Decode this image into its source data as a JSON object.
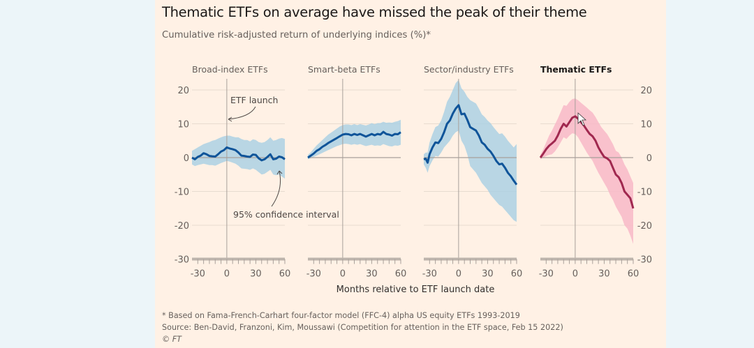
{
  "title": "Thematic ETFs on average have missed the peak of their theme",
  "subtitle": "Cumulative risk-adjusted return of underlying indices (%)*",
  "colors": {
    "page_bg": "#ecf5f9",
    "panel_bg": "#fff1e5",
    "blue_line": "#0f5499",
    "blue_band": "#a8cfe3",
    "pink_line": "#a0284f",
    "pink_band": "#f8b8c8"
  },
  "chart_data": {
    "type": "line",
    "title": "Thematic ETFs on average have missed the peak of their theme",
    "subtitle": "Cumulative risk-adjusted return of underlying indices (%)*",
    "xlabel": "Months relative to ETF launch date",
    "ylabel": "",
    "xlim": [
      -36,
      60
    ],
    "ylim": [
      -30,
      20
    ],
    "xticks": [
      -30,
      0,
      30,
      60
    ],
    "yticks": [
      20,
      10,
      0,
      -10,
      -20,
      -30
    ],
    "ytick_labels": [
      "20",
      "10",
      "0",
      "-10",
      "-20",
      "-30"
    ],
    "xtick_labels": [
      "-30",
      "0",
      "30",
      "60"
    ],
    "grid": true,
    "annotations": [
      "ETF launch",
      "95% confidence interval"
    ],
    "panels": [
      {
        "name": "Broad-index ETFs",
        "highlight": false,
        "color": "blue",
        "x": [
          -36,
          -33,
          -30,
          -27,
          -24,
          -21,
          -18,
          -15,
          -12,
          -9,
          -6,
          -3,
          0,
          3,
          6,
          9,
          12,
          15,
          18,
          21,
          24,
          27,
          30,
          33,
          36,
          39,
          42,
          45,
          48,
          51,
          54,
          57,
          60
        ],
        "values": [
          0,
          -0.5,
          0.2,
          0.6,
          1.3,
          1.0,
          0.5,
          0.4,
          0.3,
          1.0,
          1.8,
          2.2,
          3.0,
          2.7,
          2.5,
          2.2,
          1.5,
          0.6,
          0.5,
          0.3,
          0.2,
          0.9,
          0.8,
          -0.2,
          -0.8,
          -0.5,
          0.2,
          1.0,
          -0.5,
          -0.3,
          0.3,
          0.1,
          -0.5
        ],
        "upper": [
          2,
          2.5,
          3,
          3.5,
          4,
          4.3,
          4.6,
          5.0,
          5.2,
          5.6,
          6.0,
          6.3,
          6.5,
          6.5,
          6.2,
          6.0,
          6.0,
          5.5,
          5.2,
          5.2,
          4.8,
          5.4,
          5.2,
          4.6,
          4.4,
          4.6,
          5.2,
          6.0,
          5.0,
          5.2,
          5.6,
          5.8,
          5.5
        ],
        "lower": [
          -2,
          -2.5,
          -2.2,
          -2,
          -1.8,
          -2.0,
          -2.2,
          -2.2,
          -2.4,
          -2,
          -1.6,
          -1.3,
          -1.0,
          -1.2,
          -1.5,
          -1.8,
          -2.4,
          -3.2,
          -3.3,
          -3.4,
          -3.6,
          -3.2,
          -3.6,
          -4.3,
          -5.0,
          -4.8,
          -4.2,
          -3.6,
          -5.0,
          -5.2,
          -5.0,
          -5.6,
          -6.2
        ]
      },
      {
        "name": "Smart-beta ETFs",
        "highlight": false,
        "color": "blue",
        "x": [
          -36,
          -33,
          -30,
          -27,
          -24,
          -21,
          -18,
          -15,
          -12,
          -9,
          -6,
          -3,
          0,
          3,
          6,
          9,
          12,
          15,
          18,
          21,
          24,
          27,
          30,
          33,
          36,
          39,
          42,
          45,
          48,
          51,
          54,
          57,
          60
        ],
        "values": [
          0,
          0.6,
          1.2,
          2.0,
          2.5,
          3.2,
          3.7,
          4.3,
          4.8,
          5.3,
          5.8,
          6.3,
          6.8,
          7.0,
          6.9,
          6.6,
          7.0,
          6.7,
          7.0,
          6.6,
          6.2,
          6.6,
          7.0,
          6.6,
          7.0,
          6.8,
          7.6,
          7.0,
          6.8,
          6.5,
          7.0,
          6.9,
          7.5
        ],
        "upper": [
          0.8,
          1.6,
          2.6,
          3.6,
          4.4,
          5.2,
          6.0,
          6.8,
          7.4,
          8.0,
          8.6,
          9.2,
          9.6,
          9.8,
          9.8,
          9.6,
          9.9,
          9.6,
          9.9,
          9.7,
          9.5,
          9.8,
          10.2,
          9.9,
          10.2,
          10.2,
          10.6,
          10.3,
          10.4,
          10.3,
          10.6,
          10.8,
          11.2
        ],
        "lower": [
          -0.5,
          -0.2,
          0.2,
          0.6,
          1.0,
          1.4,
          1.8,
          2.2,
          2.6,
          3.0,
          3.4,
          3.7,
          4.0,
          4.1,
          4.0,
          3.8,
          4.0,
          3.8,
          4.0,
          3.7,
          3.4,
          3.6,
          3.8,
          3.5,
          3.6,
          3.5,
          4.0,
          3.7,
          3.4,
          3.3,
          3.6,
          3.5,
          3.8
        ]
      },
      {
        "name": "Sector/industry ETFs",
        "highlight": false,
        "color": "blue",
        "x": [
          -36,
          -34,
          -32,
          -30,
          -27,
          -24,
          -21,
          -18,
          -15,
          -12,
          -9,
          -6,
          -3,
          0,
          3,
          6,
          9,
          12,
          15,
          18,
          21,
          24,
          27,
          30,
          33,
          36,
          39,
          42,
          45,
          48,
          51,
          54,
          57,
          60
        ],
        "values": [
          -0.5,
          -0.3,
          -1.5,
          1.0,
          3.0,
          4.5,
          4.3,
          5.5,
          7.5,
          10.0,
          11.0,
          13.0,
          14.5,
          15.5,
          12.8,
          13.0,
          11.2,
          9.0,
          8.5,
          8.0,
          6.5,
          4.5,
          3.8,
          2.6,
          1.8,
          0.5,
          -1.0,
          -2.0,
          -1.8,
          -3.0,
          -4.5,
          -5.5,
          -6.8,
          -8.0
        ],
        "upper": [
          1.0,
          1.5,
          1.5,
          4.5,
          7.0,
          9.0,
          9.5,
          11.0,
          13.5,
          16.5,
          18.0,
          20.0,
          22.0,
          23.0,
          20.5,
          19.5,
          18.0,
          17.0,
          16.5,
          16.0,
          14.5,
          12.8,
          12.0,
          11.0,
          10.2,
          9.0,
          8.0,
          7.0,
          7.2,
          6.2,
          5.0,
          4.0,
          3.0,
          4.0
        ],
        "lower": [
          -2.0,
          -3.0,
          -4.5,
          -2.5,
          -0.8,
          0.5,
          0.3,
          1.5,
          3.0,
          4.0,
          5.0,
          6.5,
          7.5,
          8.0,
          5.0,
          3.5,
          1.0,
          -2.5,
          -3.5,
          -4.5,
          -6.0,
          -7.5,
          -8.5,
          -9.5,
          -11.0,
          -12.0,
          -13.0,
          -14.0,
          -14.5,
          -15.5,
          -16.5,
          -17.5,
          -18.5,
          -19.0
        ]
      },
      {
        "name": "Thematic ETFs",
        "highlight": true,
        "color": "pink",
        "x": [
          -36,
          -33,
          -30,
          -27,
          -24,
          -21,
          -18,
          -15,
          -12,
          -9,
          -6,
          -3,
          0,
          3,
          6,
          9,
          12,
          15,
          18,
          21,
          24,
          27,
          30,
          33,
          36,
          39,
          42,
          45,
          48,
          51,
          54,
          57,
          60
        ],
        "values": [
          0,
          1.2,
          2.5,
          3.5,
          4.2,
          5.0,
          6.5,
          8.5,
          10.0,
          9.2,
          10.5,
          11.8,
          12.2,
          11.5,
          10.5,
          9.5,
          8.2,
          7.0,
          6.3,
          5.0,
          3.0,
          1.5,
          0.2,
          -0.2,
          -1.0,
          -3.0,
          -5.0,
          -5.8,
          -7.5,
          -10.0,
          -11.0,
          -12.0,
          -15.0
        ],
        "upper": [
          0.8,
          2.5,
          4.5,
          6.5,
          8.0,
          9.8,
          11.5,
          13.5,
          15.5,
          15.3,
          16.5,
          17.3,
          17.5,
          17.0,
          16.2,
          15.5,
          14.8,
          14.0,
          13.3,
          12.0,
          10.5,
          9.0,
          8.0,
          7.0,
          5.5,
          4.0,
          2.0,
          1.5,
          0.0,
          -2.0,
          -3.5,
          -5.5,
          -7.5
        ],
        "lower": [
          -0.5,
          0.0,
          0.5,
          0.8,
          1.0,
          1.8,
          3.0,
          4.5,
          6.0,
          5.5,
          6.5,
          7.2,
          7.0,
          6.0,
          4.5,
          3.0,
          1.5,
          0.2,
          -1.0,
          -2.8,
          -4.5,
          -6.0,
          -7.5,
          -9.0,
          -11.0,
          -12.5,
          -14.5,
          -16.0,
          -17.5,
          -20.0,
          -21.0,
          -23.0,
          -25.5
        ]
      }
    ]
  },
  "footnotes": {
    "note": "* Based on Fama-French-Carhart four-factor model (FFC-4) alpha US equity ETFs 1993-2019",
    "source": "Source: Ben-David, Franzoni, Kim, Moussawi (Competition for attention in the ETF space, Feb 15 2022)",
    "copyright_symbol": "©",
    "copyright": "FT"
  }
}
